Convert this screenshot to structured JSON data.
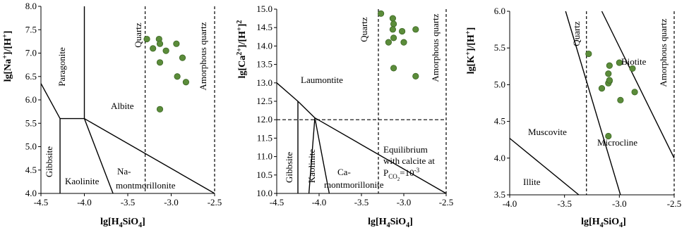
{
  "colors": {
    "point_fill": "#5b8c3a",
    "point_stroke": "#3b6624",
    "line": "#000000"
  },
  "chart_data": [
    {
      "id": "na",
      "type": "scatter",
      "xlabel": "lg[H4SiO4]",
      "ylabel": "lg[Na+]/[H+]",
      "xlim": [
        -4.5,
        -2.5
      ],
      "ylim": [
        4.0,
        8.0
      ],
      "x_ticks": [
        -4.5,
        -4.0,
        -3.5,
        -3.0,
        -2.5
      ],
      "y_ticks": [
        4.0,
        4.5,
        5.0,
        5.5,
        6.0,
        6.5,
        7.0,
        7.5,
        8.0
      ],
      "x_tick_labels": [
        "-4.5",
        "-4.0",
        "-3.5",
        "-3.0",
        "-2.5"
      ],
      "y_tick_labels": [
        "4.0",
        "4.5",
        "5.0",
        "5.5",
        "6.0",
        "6.5",
        "7.0",
        "7.5",
        "8.0"
      ],
      "fields": [
        "Paragonite",
        "Albite",
        "Gibbsite",
        "Kaolinite",
        "Na-",
        "montmorillonite"
      ],
      "reference_lines": [
        "Quartz",
        "Amorphous quartz"
      ],
      "boundaries": [
        [
          [
            -4.5,
            6.35
          ],
          [
            -4.28,
            5.6
          ]
        ],
        [
          [
            -4.28,
            5.6
          ],
          [
            -4.0,
            5.6
          ]
        ],
        [
          [
            -4.28,
            5.6
          ],
          [
            -4.28,
            4.0
          ]
        ],
        [
          [
            -4.0,
            5.6
          ],
          [
            -4.0,
            8.0
          ]
        ],
        [
          [
            -4.0,
            5.6
          ],
          [
            -3.67,
            4.0
          ]
        ],
        [
          [
            -4.0,
            5.6
          ],
          [
            -2.5,
            4.0
          ]
        ]
      ],
      "dashed_x": [
        -3.3,
        -2.5
      ],
      "x": [
        -3.28,
        -3.21,
        -3.14,
        -3.13,
        -3.06,
        -2.94,
        -2.87,
        -3.13,
        -2.93,
        -2.83,
        -3.13
      ],
      "y": [
        7.3,
        7.1,
        7.3,
        7.2,
        7.05,
        7.2,
        6.9,
        6.8,
        6.5,
        6.38,
        5.8
      ]
    },
    {
      "id": "ca",
      "type": "scatter",
      "xlabel": "lg[H4SiO4]",
      "ylabel": "lg[Ca2+]/[H+]2",
      "xlim": [
        -4.5,
        -2.5
      ],
      "ylim": [
        10.0,
        15.0
      ],
      "x_ticks": [
        -4.5,
        -4.0,
        -3.5,
        -3.0,
        -2.5
      ],
      "y_ticks": [
        10.0,
        10.5,
        11.0,
        11.5,
        12.0,
        12.5,
        13.0,
        13.5,
        14.0,
        14.5,
        15.0
      ],
      "x_tick_labels": [
        "-4.5",
        "-4.0",
        "-3.5",
        "-3.0",
        "-2.5"
      ],
      "y_tick_labels": [
        "10.0",
        "10.5",
        "11.0",
        "11.5",
        "12.0",
        "12.5",
        "13.0",
        "13.5",
        "14.0",
        "14.5",
        "15.0"
      ],
      "fields": [
        "Laumontite",
        "Gibbsite",
        "Kaolinite",
        "Ca-",
        "montmorillonite",
        "Equilibrium",
        "with calcite at"
      ],
      "equilibrium_pco2": {
        "base": "P",
        "sub": "CO",
        "sub2": "2",
        "eq": "=10",
        "sup": "-3"
      },
      "reference_lines": [
        "Quartz",
        "Amorphous quartz"
      ],
      "boundaries": [
        [
          [
            -4.5,
            13.0
          ],
          [
            -4.25,
            12.5
          ]
        ],
        [
          [
            -4.25,
            12.5
          ],
          [
            -4.25,
            10.0
          ]
        ],
        [
          [
            -4.25,
            12.5
          ],
          [
            -4.05,
            12.05
          ]
        ],
        [
          [
            -4.05,
            12.05
          ],
          [
            -4.12,
            10.0
          ]
        ],
        [
          [
            -4.05,
            12.05
          ],
          [
            -3.88,
            10.0
          ]
        ],
        [
          [
            -4.05,
            12.05
          ],
          [
            -2.5,
            10.0
          ]
        ]
      ],
      "dashed_x": [
        -3.3,
        -2.5
      ],
      "dashed_y": 12.0,
      "x": [
        -3.27,
        -3.13,
        -3.12,
        -3.13,
        -3.02,
        -3.12,
        -2.86,
        -3.18,
        -3.0,
        -3.12,
        -2.86
      ],
      "y": [
        14.88,
        14.75,
        14.6,
        14.45,
        14.4,
        14.22,
        14.45,
        14.1,
        14.1,
        13.4,
        13.18
      ]
    },
    {
      "id": "k",
      "type": "scatter",
      "xlabel": "lg[H4SiO4]",
      "ylabel": "lg[K+]/[H+]",
      "xlim": [
        -4.0,
        -2.5
      ],
      "ylim": [
        3.5,
        6.0
      ],
      "x_ticks": [
        -4.0,
        -3.5,
        -3.0,
        -2.5
      ],
      "y_ticks": [
        3.5,
        4.0,
        4.5,
        5.0,
        5.5,
        6.0
      ],
      "x_tick_labels": [
        "-4.0",
        "-3.5",
        "-3.0",
        "-2.5"
      ],
      "y_tick_labels": [
        "3.5",
        "4.0",
        "4.5",
        "5.0",
        "5.5",
        "6.0"
      ],
      "fields": [
        "Biotite",
        "Muscovite",
        "Microcline",
        "Illite"
      ],
      "reference_lines": [
        "Quartz",
        "Amorphous quartz"
      ],
      "boundaries": [
        [
          [
            -4.0,
            4.27
          ],
          [
            -3.37,
            3.5
          ]
        ],
        [
          [
            -3.49,
            6.0
          ],
          [
            -2.99,
            3.5
          ]
        ],
        [
          [
            -3.16,
            6.0
          ],
          [
            -2.5,
            4.0
          ]
        ]
      ],
      "dashed_x": [
        -3.3,
        -2.5
      ],
      "x": [
        -3.28,
        -3.09,
        -3.0,
        -2.88,
        -3.1,
        -3.09,
        -3.16,
        -3.1,
        -3.09,
        -2.99,
        -2.86,
        -3.1
      ],
      "y": [
        5.42,
        5.26,
        5.3,
        5.22,
        5.15,
        5.05,
        4.95,
        5.02,
        5.06,
        4.79,
        4.9,
        4.3
      ]
    }
  ]
}
